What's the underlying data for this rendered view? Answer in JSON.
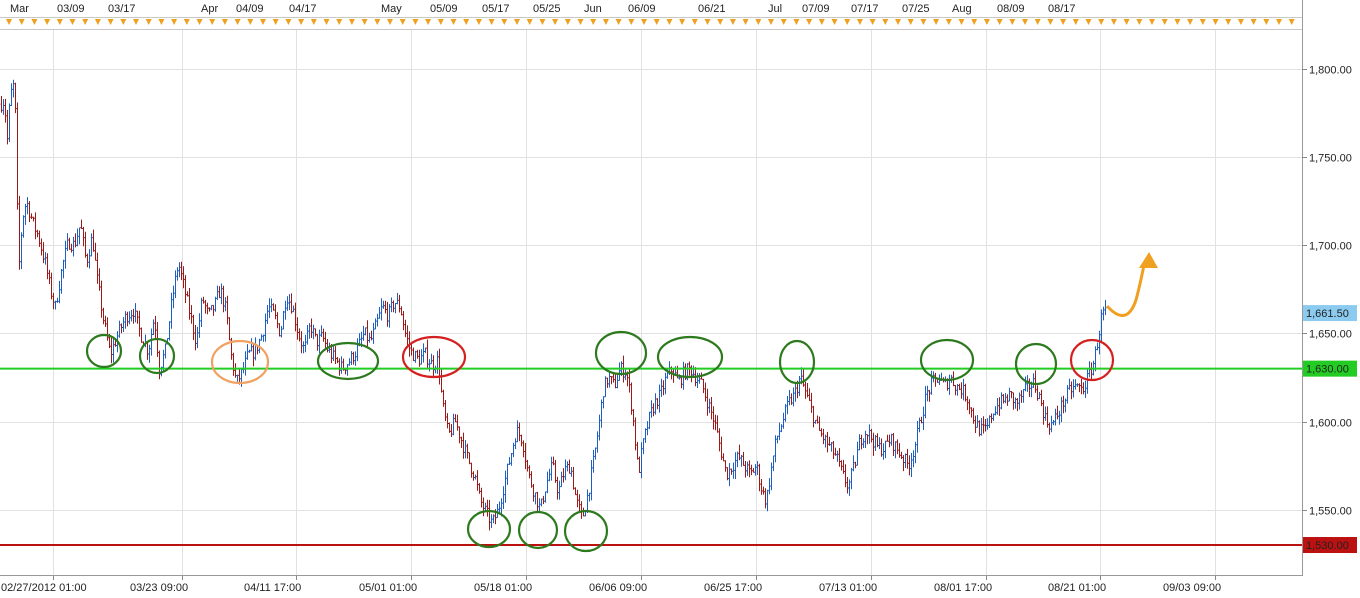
{
  "chart_data": {
    "type": "candlestick",
    "x_axis_labels": [
      "02/27/2012 01:00",
      "03/23 09:00",
      "04/11 17:00",
      "05/01 01:00",
      "05/18 01:00",
      "06/06 09:00",
      "06/25 17:00",
      "07/13 01:00",
      "08/01 17:00",
      "08/21 01:00",
      "09/03 09:00"
    ],
    "top_axis_labels": [
      "Mar",
      "03/09",
      "03/17",
      "Apr",
      "04/09",
      "04/17",
      "May",
      "05/09",
      "05/17",
      "05/25",
      "Jun",
      "06/09",
      "06/21",
      "Jul",
      "07/09",
      "07/17",
      "07/25",
      "Aug",
      "08/09",
      "08/17"
    ],
    "y_axis_labels": [
      "1,800.00",
      "1,750.00",
      "1,700.00",
      "1,650.00",
      "1,600.00",
      "1,550.00"
    ],
    "ylim": [
      1513,
      1822
    ],
    "price_path": [
      [
        0,
        1780
      ],
      [
        4,
        1782
      ],
      [
        7,
        1760
      ],
      [
        10,
        1785
      ],
      [
        13,
        1790
      ],
      [
        15,
        1775
      ],
      [
        17,
        1720
      ],
      [
        19,
        1690
      ],
      [
        22,
        1715
      ],
      [
        26,
        1725
      ],
      [
        33,
        1712
      ],
      [
        38,
        1705
      ],
      [
        45,
        1690
      ],
      [
        50,
        1675
      ],
      [
        55,
        1665
      ],
      [
        62,
        1688
      ],
      [
        68,
        1702
      ],
      [
        74,
        1700
      ],
      [
        80,
        1712
      ],
      [
        86,
        1690
      ],
      [
        92,
        1705
      ],
      [
        97,
        1680
      ],
      [
        103,
        1658
      ],
      [
        110,
        1638
      ],
      [
        118,
        1650
      ],
      [
        126,
        1660
      ],
      [
        133,
        1663
      ],
      [
        140,
        1650
      ],
      [
        148,
        1640
      ],
      [
        154,
        1660
      ],
      [
        159,
        1630
      ],
      [
        165,
        1640
      ],
      [
        172,
        1670
      ],
      [
        178,
        1690
      ],
      [
        184,
        1675
      ],
      [
        190,
        1660
      ],
      [
        196,
        1645
      ],
      [
        202,
        1670
      ],
      [
        208,
        1660
      ],
      [
        214,
        1665
      ],
      [
        220,
        1675
      ],
      [
        226,
        1662
      ],
      [
        230,
        1640
      ],
      [
        236,
        1622
      ],
      [
        242,
        1628
      ],
      [
        248,
        1638
      ],
      [
        255,
        1640
      ],
      [
        262,
        1650
      ],
      [
        268,
        1665
      ],
      [
        274,
        1660
      ],
      [
        280,
        1650
      ],
      [
        286,
        1672
      ],
      [
        292,
        1665
      ],
      [
        298,
        1650
      ],
      [
        304,
        1640
      ],
      [
        310,
        1655
      ],
      [
        316,
        1645
      ],
      [
        322,
        1648
      ],
      [
        328,
        1640
      ],
      [
        335,
        1635
      ],
      [
        342,
        1630
      ],
      [
        350,
        1635
      ],
      [
        356,
        1640
      ],
      [
        364,
        1650
      ],
      [
        370,
        1645
      ],
      [
        376,
        1655
      ],
      [
        382,
        1665
      ],
      [
        388,
        1660
      ],
      [
        394,
        1668
      ],
      [
        400,
        1665
      ],
      [
        405,
        1650
      ],
      [
        410,
        1640
      ],
      [
        418,
        1635
      ],
      [
        425,
        1638
      ],
      [
        432,
        1632
      ],
      [
        438,
        1635
      ],
      [
        442,
        1610
      ],
      [
        448,
        1592
      ],
      [
        455,
        1600
      ],
      [
        462,
        1588
      ],
      [
        468,
        1578
      ],
      [
        474,
        1570
      ],
      [
        480,
        1555
      ],
      [
        486,
        1548
      ],
      [
        492,
        1542
      ],
      [
        498,
        1550
      ],
      [
        504,
        1565
      ],
      [
        510,
        1580
      ],
      [
        516,
        1595
      ],
      [
        522,
        1590
      ],
      [
        528,
        1570
      ],
      [
        534,
        1560
      ],
      [
        540,
        1550
      ],
      [
        546,
        1565
      ],
      [
        552,
        1575
      ],
      [
        558,
        1560
      ],
      [
        564,
        1572
      ],
      [
        570,
        1575
      ],
      [
        576,
        1555
      ],
      [
        582,
        1545
      ],
      [
        588,
        1560
      ],
      [
        594,
        1580
      ],
      [
        599,
        1600
      ],
      [
        603,
        1618
      ],
      [
        608,
        1625
      ],
      [
        614,
        1620
      ],
      [
        620,
        1630
      ],
      [
        626,
        1628
      ],
      [
        630,
        1615
      ],
      [
        634,
        1595
      ],
      [
        638,
        1570
      ],
      [
        642,
        1585
      ],
      [
        648,
        1600
      ],
      [
        654,
        1610
      ],
      [
        660,
        1615
      ],
      [
        666,
        1625
      ],
      [
        672,
        1630
      ],
      [
        678,
        1622
      ],
      [
        684,
        1628
      ],
      [
        690,
        1630
      ],
      [
        696,
        1625
      ],
      [
        702,
        1620
      ],
      [
        708,
        1610
      ],
      [
        714,
        1600
      ],
      [
        720,
        1585
      ],
      [
        726,
        1570
      ],
      [
        732,
        1575
      ],
      [
        738,
        1580
      ],
      [
        744,
        1575
      ],
      [
        750,
        1570
      ],
      [
        756,
        1575
      ],
      [
        762,
        1560
      ],
      [
        766,
        1555
      ],
      [
        770,
        1570
      ],
      [
        776,
        1590
      ],
      [
        782,
        1600
      ],
      [
        788,
        1610
      ],
      [
        794,
        1615
      ],
      [
        800,
        1625
      ],
      [
        806,
        1615
      ],
      [
        812,
        1605
      ],
      [
        818,
        1595
      ],
      [
        824,
        1590
      ],
      [
        830,
        1585
      ],
      [
        836,
        1580
      ],
      [
        842,
        1570
      ],
      [
        848,
        1563
      ],
      [
        854,
        1575
      ],
      [
        860,
        1590
      ],
      [
        866,
        1595
      ],
      [
        872,
        1590
      ],
      [
        878,
        1585
      ],
      [
        884,
        1585
      ],
      [
        890,
        1590
      ],
      [
        896,
        1585
      ],
      [
        902,
        1580
      ],
      [
        908,
        1575
      ],
      [
        914,
        1585
      ],
      [
        920,
        1600
      ],
      [
        926,
        1615
      ],
      [
        932,
        1622
      ],
      [
        938,
        1625
      ],
      [
        944,
        1620
      ],
      [
        950,
        1625
      ],
      [
        956,
        1620
      ],
      [
        962,
        1618
      ],
      [
        968,
        1612
      ],
      [
        974,
        1600
      ],
      [
        980,
        1595
      ],
      [
        986,
        1595
      ],
      [
        992,
        1605
      ],
      [
        998,
        1610
      ],
      [
        1004,
        1612
      ],
      [
        1010,
        1615
      ],
      [
        1016,
        1610
      ],
      [
        1022,
        1615
      ],
      [
        1028,
        1620
      ],
      [
        1034,
        1622
      ],
      [
        1040,
        1612
      ],
      [
        1046,
        1600
      ],
      [
        1052,
        1598
      ],
      [
        1058,
        1605
      ],
      [
        1064,
        1612
      ],
      [
        1070,
        1618
      ],
      [
        1076,
        1620
      ],
      [
        1082,
        1618
      ],
      [
        1088,
        1625
      ],
      [
        1094,
        1635
      ],
      [
        1098,
        1648
      ],
      [
        1102,
        1662
      ],
      [
        1105,
        1661.5
      ]
    ]
  },
  "lines": {
    "resistance": {
      "label": "1,630.00",
      "value": 1630,
      "color": "#22cc22"
    },
    "support": {
      "label": "1,530.00",
      "value": 1530,
      "color": "#bb1111"
    }
  },
  "last_price": {
    "label": "1,661.50",
    "value": 1661.5,
    "color": "#8ccbf0"
  },
  "colors": {
    "up": "#1f5fbf",
    "down": "#9a1a1a",
    "circle_green": "#2d7a1e",
    "circle_red": "#d42020",
    "circle_orange": "#f0a060",
    "arrow": "#f0a020",
    "grid": "#e2e2e2",
    "frame": "#999999"
  }
}
